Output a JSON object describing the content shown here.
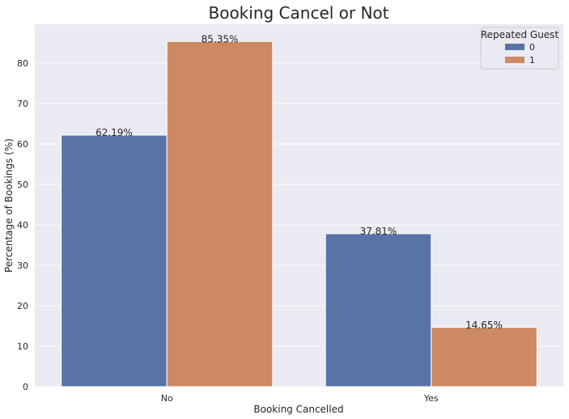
{
  "chart_data": {
    "type": "bar",
    "title": "Booking Cancel or Not",
    "xlabel": "Booking Cancelled",
    "ylabel": "Percentage of Bookings (%)",
    "categories": [
      "No",
      "Yes"
    ],
    "ylim": [
      0,
      89.6
    ],
    "yticks": [
      "0",
      "10",
      "20",
      "30",
      "40",
      "50",
      "60",
      "70",
      "80"
    ],
    "grid": true,
    "legend": {
      "title": "Repeated Guest",
      "placement": "top-right"
    },
    "series": [
      {
        "name": "0",
        "color": "#5874a6",
        "values": [
          62.19,
          37.81
        ],
        "labels": [
          "62.19%",
          "37.81%"
        ]
      },
      {
        "name": "1",
        "color": "#cc8963",
        "values": [
          85.35,
          14.65
        ],
        "labels": [
          "85.35%",
          "14.65%"
        ]
      }
    ],
    "background": "#eaeaf2"
  }
}
